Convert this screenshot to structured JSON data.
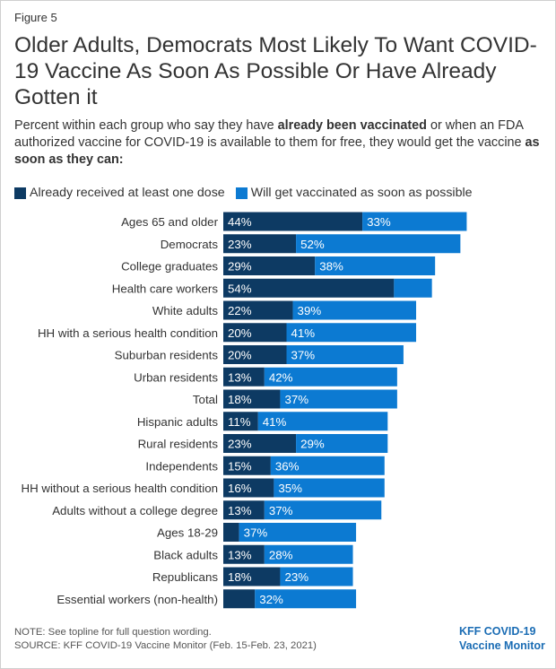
{
  "figure_label": "Figure 5",
  "title": "Older Adults, Democrats Most Likely To Want COVID-19 Vaccine As Soon As Possible Or Have Already Gotten it",
  "subtitle": {
    "part1": "Percent within each group who say they have ",
    "bold1": "already been vaccinated",
    "part2": " or when an FDA authorized vaccine for COVID-19 is available to them for free, they would get the vaccine ",
    "bold2": "as soon as they can:"
  },
  "colors": {
    "received": "#0d3a63",
    "asap": "#0c7ad2"
  },
  "chart_data": {
    "type": "bar",
    "orientation": "horizontal",
    "stacked": true,
    "categories": [
      "Ages 65 and older",
      "Democrats",
      "College graduates",
      "Health care workers",
      "White adults",
      "HH with a serious health condition",
      "Suburban residents",
      "Urban residents",
      "Total",
      "Hispanic adults",
      "Rural residents",
      "Independents",
      "HH without a serious health condition",
      "Adults without a college degree",
      "Ages 18-29",
      "Black adults",
      "Republicans",
      "Essential workers (non-health)"
    ],
    "series": [
      {
        "name": "Already received at least one dose",
        "values": [
          44,
          23,
          29,
          54,
          22,
          20,
          20,
          13,
          18,
          11,
          23,
          15,
          16,
          13,
          5,
          13,
          18,
          10
        ],
        "labels": [
          "44%",
          "23%",
          "29%",
          "54%",
          "22%",
          "20%",
          "20%",
          "13%",
          "18%",
          "11%",
          "23%",
          "15%",
          "16%",
          "13%",
          "",
          "13%",
          "18%",
          ""
        ]
      },
      {
        "name": "Will get vaccinated as soon as possible",
        "values": [
          33,
          52,
          38,
          12,
          39,
          41,
          37,
          42,
          37,
          41,
          29,
          36,
          35,
          37,
          37,
          28,
          23,
          32
        ],
        "labels": [
          "33%",
          "52%",
          "38%",
          "",
          "39%",
          "41%",
          "37%",
          "42%",
          "37%",
          "41%",
          "29%",
          "36%",
          "35%",
          "37%",
          "37%",
          "28%",
          "23%",
          "32%"
        ]
      }
    ],
    "legend_placement": "top-left",
    "grid": false
  },
  "note": "NOTE: See topline for full question wording.",
  "source": "SOURCE: KFF COVID-19 Vaccine Monitor (Feb. 15-Feb. 23, 2021)",
  "logo": {
    "line1": "KFF COVID-19",
    "line2": "Vaccine Monitor"
  }
}
